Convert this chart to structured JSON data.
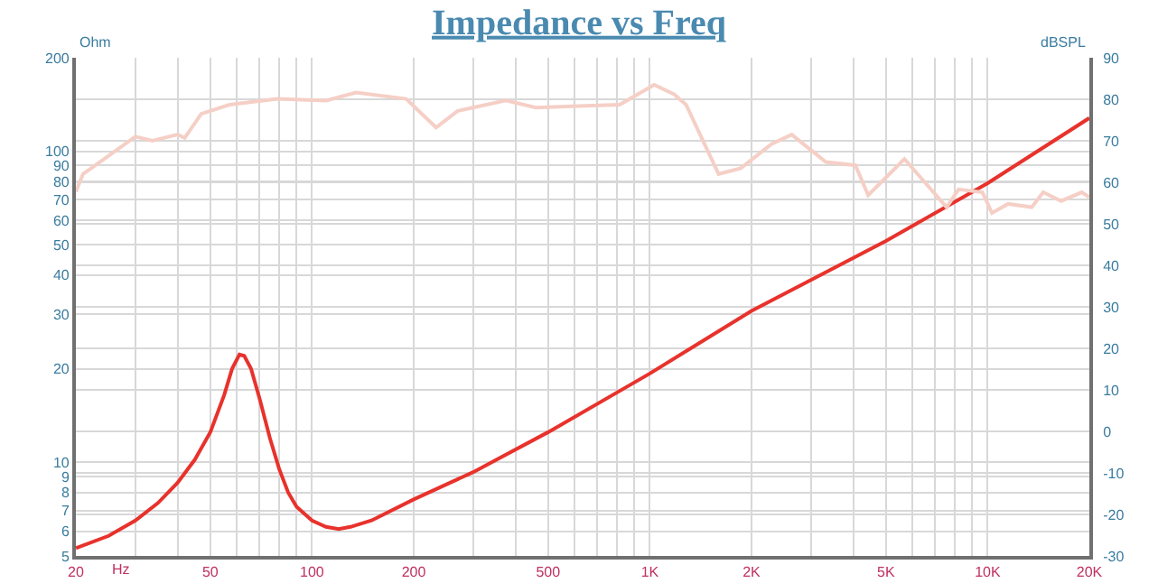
{
  "chart_data": {
    "type": "line",
    "title": "Impedance vs Freq",
    "xlabel": "Hz",
    "ylabel": "Ohm",
    "y2label": "dBSPL",
    "log": "xy",
    "grid": true,
    "marker": "none",
    "line_style": "solid",
    "xlim": [
      20,
      20000
    ],
    "xticks": [
      20,
      {
        "value": 30,
        "label": null
      },
      {
        "value": 40,
        "label": null
      },
      50,
      {
        "value": 60,
        "label": null
      },
      {
        "value": 70,
        "label": null
      },
      {
        "value": 80,
        "label": null
      },
      {
        "value": 90,
        "label": null
      },
      100,
      200,
      {
        "value": 300,
        "label": null
      },
      {
        "value": 400,
        "label": null
      },
      500,
      {
        "value": 600,
        "label": null
      },
      {
        "value": 700,
        "label": null
      },
      {
        "value": 800,
        "label": null
      },
      {
        "value": 900,
        "label": null
      },
      {
        "value": 1000,
        "label": "1K"
      },
      {
        "value": 2000,
        "label": "2K"
      },
      {
        "value": 3000,
        "label": null
      },
      {
        "value": 4000,
        "label": null
      },
      {
        "value": 5000,
        "label": "5K"
      },
      {
        "value": 6000,
        "label": null
      },
      {
        "value": 7000,
        "label": null
      },
      {
        "value": 8000,
        "label": null
      },
      {
        "value": 9000,
        "label": null
      },
      {
        "value": 10000,
        "label": "10K"
      },
      {
        "value": 20000,
        "label": "20K"
      }
    ],
    "ylim": [
      5,
      200
    ],
    "yticks": [
      5,
      6,
      7,
      8,
      9,
      10,
      20,
      30,
      40,
      50,
      60,
      70,
      80,
      90,
      100,
      200
    ],
    "y2lim": [
      -30,
      90
    ],
    "y2ticks": [
      -30,
      -20,
      -10,
      0,
      10,
      20,
      30,
      40,
      50,
      60,
      70,
      80,
      90
    ],
    "series": [
      {
        "color": "#e8322c",
        "x": [
          20,
          25,
          30,
          35,
          40,
          45,
          50,
          55,
          58,
          61,
          63,
          66,
          70,
          75,
          80,
          85,
          90,
          100,
          110,
          120,
          130,
          150,
          200,
          300,
          500,
          1000,
          2000,
          5000,
          10000,
          20000
        ],
        "values": [
          5.3,
          5.8,
          6.5,
          7.4,
          8.6,
          10.2,
          12.5,
          16.5,
          20,
          22.2,
          22,
          20,
          16,
          12,
          9.5,
          8,
          7.2,
          6.5,
          6.2,
          6.1,
          6.2,
          6.5,
          7.6,
          9.3,
          12.5,
          19.3,
          30.7,
          51.5,
          79,
          128
        ]
      },
      {
        "color": "#f5cfc6",
        "axis": "y2",
        "x": [
          20,
          21,
          25,
          30,
          33.7,
          40,
          42,
          47,
          57,
          79,
          110,
          135,
          190,
          233,
          270,
          375,
          460,
          590,
          814,
          1030,
          1180,
          1280,
          1598,
          1860,
          2290,
          2630,
          3320,
          4060,
          4430,
          5670,
          6420,
          7560,
          8200,
          9650,
          10300,
          11500,
          13500,
          14600,
          16500,
          19000,
          20000
        ],
        "values": [
          57.7,
          62,
          66.4,
          71,
          70,
          71.5,
          70.7,
          76.5,
          78.7,
          80.1,
          79.7,
          81.6,
          80.1,
          73.2,
          77.2,
          79.7,
          78,
          78.3,
          78.7,
          83.5,
          81.2,
          78.7,
          62,
          63.4,
          69.2,
          71.5,
          64.9,
          64.1,
          56.9,
          65.6,
          60.6,
          54,
          58.3,
          57.6,
          52.6,
          54.8,
          54,
          57.6,
          55.5,
          57.6,
          56.4
        ]
      }
    ]
  }
}
